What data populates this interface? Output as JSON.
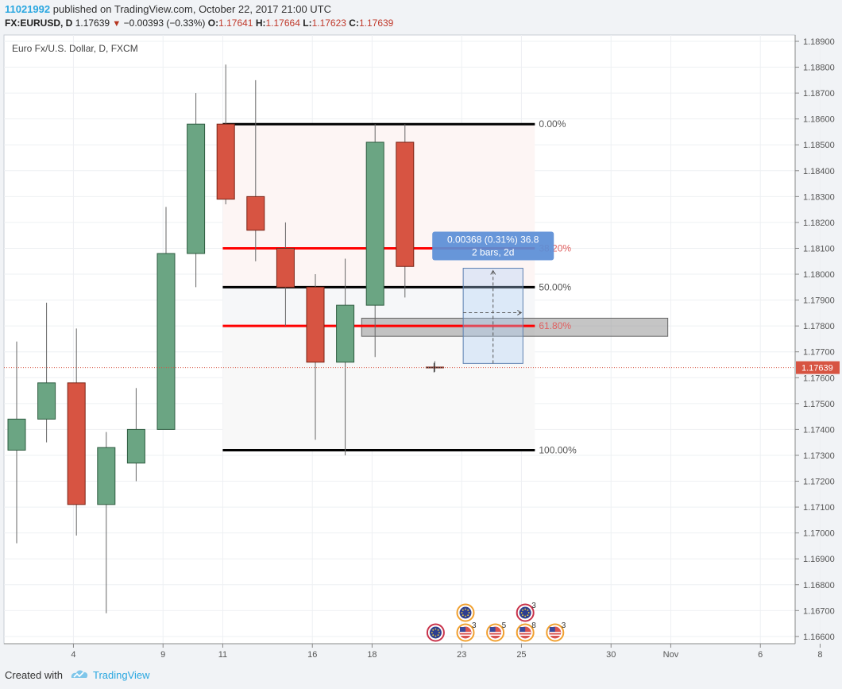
{
  "header": {
    "user_id": "11021992",
    "published_text": "published on TradingView.com, October 22, 2017 21:00 UTC",
    "symbol": "FX:EURUSD, D",
    "last": "1.17639",
    "change": "−0.00393 (−0.33%)",
    "o_label": "O:",
    "o_value": "1.17641",
    "h_label": "H:",
    "h_value": "1.17664",
    "l_label": "L:",
    "l_value": "1.17623",
    "c_label": "C:",
    "c_value": "1.17639"
  },
  "footer": {
    "created_with": "Created with",
    "brand": "TradingView"
  },
  "colors": {
    "up": "#6ba583",
    "down": "#d75442",
    "fib_black": "#000000",
    "fib_red": "#ff0000",
    "price_tag": "#d75442",
    "measure_box": "#5b8ed6"
  },
  "chart_data": {
    "type": "candlestick",
    "title": "Euro Fx/U.S. Dollar, D, FXCM",
    "ylim": [
      1.1655,
      1.19
    ],
    "y_ticks": [
      "1.18900",
      "1.18800",
      "1.18700",
      "1.18600",
      "1.18500",
      "1.18400",
      "1.18300",
      "1.18200",
      "1.18100",
      "1.18000",
      "1.17900",
      "1.17800",
      "1.17700",
      "1.17600",
      "1.17500",
      "1.17400",
      "1.17300",
      "1.17200",
      "1.17100",
      "1.17000",
      "1.16900",
      "1.16800",
      "1.16700",
      "1.16600"
    ],
    "x_ticks": [
      {
        "label": "4",
        "x": 1.9
      },
      {
        "label": "9",
        "x": 4.9
      },
      {
        "label": "11",
        "x": 6.9
      },
      {
        "label": "16",
        "x": 9.9
      },
      {
        "label": "18",
        "x": 11.9
      },
      {
        "label": "23",
        "x": 14.9
      },
      {
        "label": "25",
        "x": 16.9
      },
      {
        "label": "30",
        "x": 19.9
      },
      {
        "label": "Nov",
        "x": 21.9
      },
      {
        "label": "6",
        "x": 24.9
      },
      {
        "label": "8",
        "x": 26.9
      }
    ],
    "candles": [
      {
        "x": 0,
        "o": 1.1732,
        "h": 1.1774,
        "l": 1.1696,
        "c": 1.1744
      },
      {
        "x": 1,
        "o": 1.1744,
        "h": 1.1789,
        "l": 1.1735,
        "c": 1.1758
      },
      {
        "x": 2,
        "o": 1.1758,
        "h": 1.1779,
        "l": 1.1699,
        "c": 1.1711
      },
      {
        "x": 3,
        "o": 1.1711,
        "h": 1.1739,
        "l": 1.1669,
        "c": 1.1733
      },
      {
        "x": 4,
        "o": 1.1727,
        "h": 1.1756,
        "l": 1.172,
        "c": 1.174
      },
      {
        "x": 5,
        "o": 1.174,
        "h": 1.1826,
        "l": 1.174,
        "c": 1.1808
      },
      {
        "x": 6,
        "o": 1.1808,
        "h": 1.187,
        "l": 1.1795,
        "c": 1.1858
      },
      {
        "x": 7,
        "o": 1.1858,
        "h": 1.1881,
        "l": 1.1827,
        "c": 1.1829
      },
      {
        "x": 8,
        "o": 1.183,
        "h": 1.1875,
        "l": 1.1805,
        "c": 1.1817
      },
      {
        "x": 9,
        "o": 1.181,
        "h": 1.182,
        "l": 1.178,
        "c": 1.1795
      },
      {
        "x": 10,
        "o": 1.1795,
        "h": 1.18,
        "l": 1.1736,
        "c": 1.1766
      },
      {
        "x": 11,
        "o": 1.1766,
        "h": 1.1806,
        "l": 1.173,
        "c": 1.1788
      },
      {
        "x": 12,
        "o": 1.1788,
        "h": 1.1858,
        "l": 1.1768,
        "c": 1.1851
      },
      {
        "x": 13,
        "o": 1.1851,
        "h": 1.1858,
        "l": 1.1791,
        "c": 1.1803
      },
      {
        "x": 14,
        "o": 1.17641,
        "h": 1.17664,
        "l": 1.17623,
        "c": 1.17639
      }
    ],
    "fibonacci": {
      "x_start": 7,
      "x_end": 17,
      "levels": [
        {
          "label": "0.00%",
          "value": 1.1858,
          "color": "#000000"
        },
        {
          "label": "38.20%",
          "value": 1.181,
          "color": "#ff0000"
        },
        {
          "label": "50.00%",
          "value": 1.1795,
          "color": "#000000"
        },
        {
          "label": "61.80%",
          "value": 1.178,
          "color": "#ff0000"
        },
        {
          "label": "100.00%",
          "value": 1.1732,
          "color": "#000000"
        }
      ]
    },
    "zone": {
      "x_start": 12,
      "x_end": 22,
      "y_top": 1.1783,
      "y_bottom": 1.1776
    },
    "measure": {
      "x_start": 15,
      "x_end": 17,
      "y_bottom": 1.17655,
      "y_top": 1.18023,
      "line1": "0.00368 (0.31%) 36.8",
      "line2": "2 bars, 2d"
    },
    "last_price": {
      "value": 1.17639,
      "label": "1.17639"
    },
    "events": [
      {
        "x": 14,
        "row": 0,
        "type": "eu",
        "ring": "#c8324a",
        "count": ""
      },
      {
        "x": 15,
        "row": 0,
        "type": "us",
        "ring": "#f0a030",
        "count": "3"
      },
      {
        "x": 15,
        "row": 1,
        "type": "eu",
        "ring": "#f0a030",
        "count": ""
      },
      {
        "x": 16,
        "row": 0,
        "type": "us",
        "ring": "#f0a030",
        "count": "5"
      },
      {
        "x": 17,
        "row": 0,
        "type": "us",
        "ring": "#f0a030",
        "count": "8"
      },
      {
        "x": 17,
        "row": 1,
        "type": "eu",
        "ring": "#c8324a",
        "count": "3"
      },
      {
        "x": 18,
        "row": 0,
        "type": "us",
        "ring": "#f0a030",
        "count": "3"
      }
    ]
  }
}
